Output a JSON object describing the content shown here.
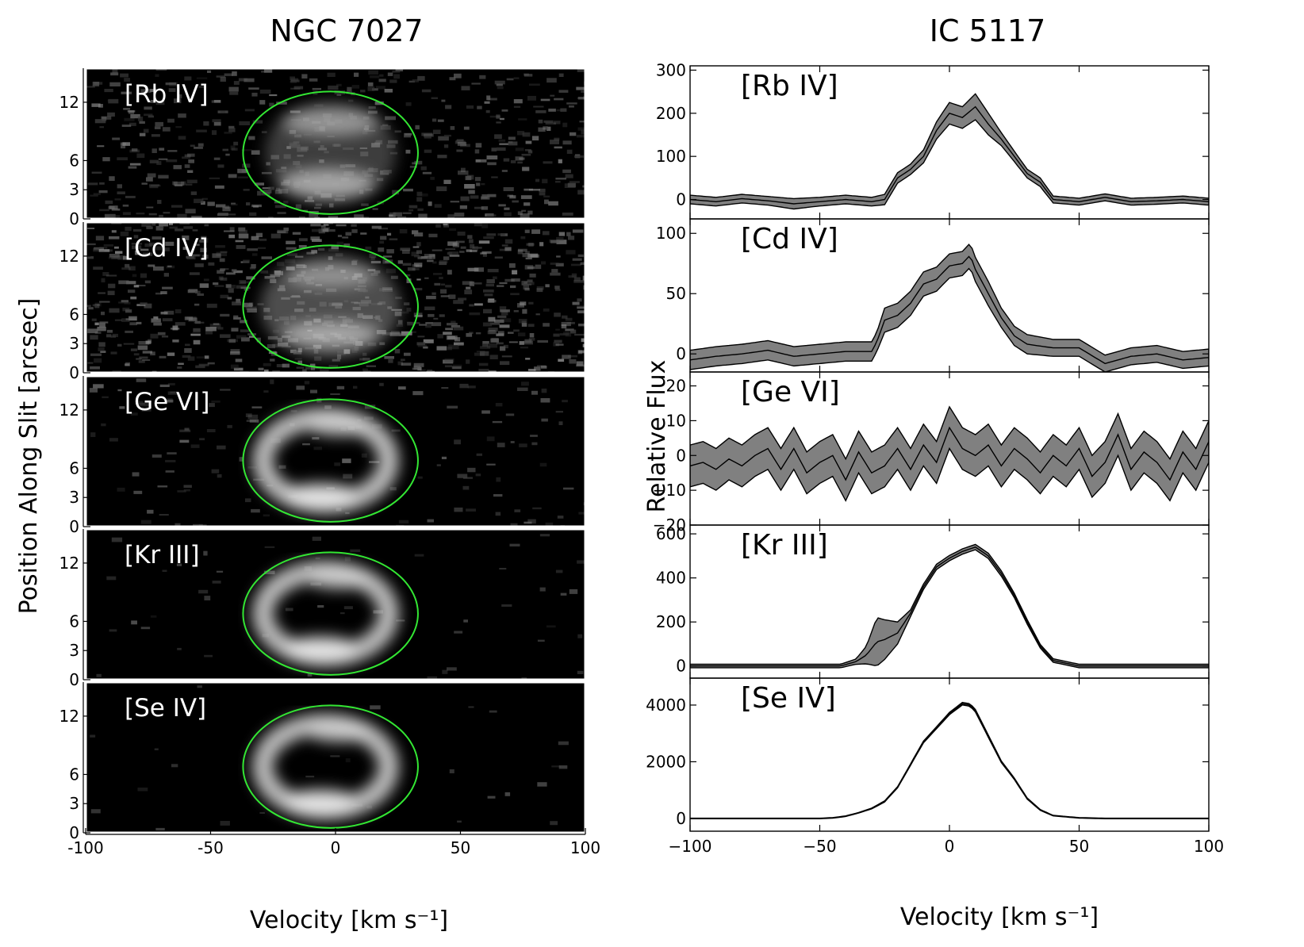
{
  "figure": {
    "left_title": "NGC 7027",
    "right_title": "IC 5117",
    "left_ylabel": "Position Along Slit [arcsec]",
    "right_ylabel": "Relative Flux",
    "left_xlabel": "Velocity [km s⁻¹]",
    "right_xlabel": "Velocity [km s⁻¹]",
    "colors": {
      "ellipse": "#33e633",
      "band_fill": "#808080",
      "line": "#000000",
      "image_bg": "#000000"
    }
  },
  "chart_data": [
    {
      "type": "heatmap",
      "title": "NGC 7027",
      "xlabel": "Velocity [km s⁻¹]",
      "ylabel": "Position Along Slit [arcsec]",
      "xlim": [
        -100,
        100
      ],
      "xticks": [
        -100,
        -50,
        0,
        50,
        100
      ],
      "xticklabels": [
        "-100",
        "-50",
        "0",
        "50",
        "100"
      ],
      "ylim": [
        0,
        15.5
      ],
      "yticks": [
        0,
        3,
        6,
        12
      ],
      "yticklabels": [
        "0",
        "3",
        "6",
        "12"
      ],
      "ellipse": {
        "center_velocity": -2,
        "center_position": 6.8,
        "velocity_halfwidth": 35,
        "position_halfwidth": 6.3
      },
      "panels": [
        {
          "ion": "[Rb IV]",
          "style": "noisy-top-bottom",
          "noise": 0.22
        },
        {
          "ion": "[Cd IV]",
          "style": "noisy-shell",
          "noise": 0.32
        },
        {
          "ion": "[Ge VI]",
          "style": "ring",
          "noise": 0.06
        },
        {
          "ion": "[Kr III]",
          "style": "ring",
          "noise": 0.02
        },
        {
          "ion": "[Se IV]",
          "style": "ring",
          "noise": 0.01
        }
      ]
    },
    {
      "type": "area",
      "title": "IC 5117",
      "xlabel": "Velocity [km s⁻¹]",
      "ylabel": "Relative Flux",
      "xlim": [
        -100,
        100
      ],
      "xticks": [
        -100,
        -50,
        0,
        50,
        100
      ],
      "xticklabels": [
        "−100",
        "−50",
        "0",
        "50",
        "100"
      ],
      "panels": [
        {
          "ion": "[Rb IV]",
          "ylim": [
            -45,
            310
          ],
          "yticks": [
            0,
            100,
            200,
            300
          ],
          "yticklabels": [
            "0",
            "100",
            "200",
            "300"
          ],
          "x": [
            -100,
            -90,
            -80,
            -70,
            -60,
            -50,
            -40,
            -30,
            -25,
            -20,
            -15,
            -10,
            -5,
            0,
            5,
            10,
            15,
            20,
            25,
            30,
            35,
            40,
            50,
            60,
            70,
            80,
            90,
            100
          ],
          "y": [
            0,
            -5,
            2,
            -3,
            -10,
            -5,
            0,
            -5,
            0,
            50,
            70,
            100,
            160,
            200,
            190,
            215,
            175,
            140,
            100,
            60,
            40,
            0,
            -5,
            5,
            -5,
            -3,
            0,
            -5
          ],
          "band": [
            10,
            10,
            10,
            10,
            12,
            10,
            10,
            10,
            12,
            12,
            12,
            15,
            20,
            25,
            25,
            30,
            25,
            15,
            12,
            10,
            10,
            8,
            8,
            8,
            8,
            8,
            8,
            8
          ]
        },
        {
          "ion": "[Cd IV]",
          "ylim": [
            -15,
            112
          ],
          "yticks": [
            0,
            50,
            100
          ],
          "yticklabels": [
            "0",
            "50",
            "100"
          ],
          "x": [
            -100,
            -90,
            -80,
            -70,
            -60,
            -50,
            -40,
            -30,
            -28,
            -25,
            -20,
            -15,
            -10,
            -5,
            0,
            5,
            8,
            10,
            15,
            20,
            25,
            30,
            40,
            50,
            60,
            70,
            80,
            90,
            100
          ],
          "y": [
            -5,
            -2,
            0,
            3,
            -2,
            0,
            2,
            2,
            10,
            28,
            32,
            42,
            58,
            62,
            73,
            75,
            82,
            70,
            50,
            30,
            15,
            8,
            5,
            5,
            -8,
            -2,
            0,
            -5,
            -3
          ],
          "band": [
            8,
            8,
            8,
            8,
            8,
            8,
            8,
            8,
            8,
            10,
            10,
            10,
            10,
            10,
            10,
            10,
            10,
            10,
            10,
            8,
            8,
            8,
            7,
            7,
            7,
            7,
            7,
            7,
            7
          ]
        },
        {
          "ion": "[Ge VI]",
          "ylim": [
            -20,
            24
          ],
          "yticks": [
            -20,
            -10,
            0,
            10,
            20
          ],
          "yticklabels": [
            "−20",
            "−10",
            "0",
            "10",
            "20"
          ],
          "x": [
            -100,
            -95,
            -90,
            -85,
            -80,
            -75,
            -70,
            -65,
            -60,
            -55,
            -50,
            -45,
            -40,
            -35,
            -30,
            -25,
            -20,
            -15,
            -10,
            -5,
            0,
            5,
            10,
            15,
            20,
            25,
            30,
            35,
            40,
            45,
            50,
            55,
            60,
            65,
            70,
            75,
            80,
            85,
            90,
            95,
            100
          ],
          "y": [
            -3,
            -2,
            -4,
            -1,
            -3,
            0,
            2,
            -4,
            2,
            -5,
            -2,
            0,
            -7,
            1,
            -5,
            -3,
            2,
            -4,
            3,
            -2,
            8,
            2,
            0,
            3,
            -3,
            2,
            -1,
            -5,
            0,
            -3,
            2,
            -6,
            -2,
            6,
            -4,
            1,
            -2,
            -7,
            1,
            -4,
            4
          ],
          "band": [
            6,
            6,
            6,
            6,
            6,
            6,
            6,
            6,
            6,
            6,
            6,
            6,
            6,
            6,
            6,
            6,
            6,
            6,
            6,
            6,
            6,
            6,
            6,
            6,
            6,
            6,
            6,
            6,
            6,
            6,
            6,
            6,
            6,
            6,
            6,
            6,
            6,
            6,
            6,
            6,
            6
          ]
        },
        {
          "ion": "[Kr III]",
          "ylim": [
            -55,
            640
          ],
          "yticks": [
            0,
            200,
            400,
            600
          ],
          "yticklabels": [
            "0",
            "200",
            "400",
            "600"
          ],
          "x": [
            -100,
            -90,
            -80,
            -70,
            -60,
            -50,
            -42,
            -36,
            -32,
            -28,
            -25,
            -20,
            -15,
            -10,
            -5,
            0,
            5,
            10,
            15,
            20,
            25,
            30,
            35,
            40,
            50,
            60,
            70,
            80,
            90,
            100
          ],
          "y": [
            0,
            0,
            0,
            0,
            0,
            0,
            0,
            20,
            50,
            110,
            120,
            150,
            240,
            360,
            450,
            490,
            520,
            540,
            500,
            420,
            320,
            200,
            90,
            25,
            0,
            0,
            0,
            0,
            0,
            0
          ],
          "band": [
            8,
            8,
            8,
            8,
            8,
            8,
            8,
            12,
            40,
            110,
            90,
            50,
            15,
            12,
            12,
            12,
            12,
            12,
            12,
            12,
            10,
            10,
            8,
            8,
            8,
            8,
            8,
            8,
            8,
            8
          ]
        },
        {
          "ion": "[Se IV]",
          "ylim": [
            -450,
            4950
          ],
          "yticks": [
            0,
            2000,
            4000
          ],
          "yticklabels": [
            "0",
            "2000",
            "4000"
          ],
          "x": [
            -100,
            -80,
            -60,
            -50,
            -45,
            -40,
            -35,
            -30,
            -25,
            -20,
            -15,
            -10,
            -5,
            0,
            5,
            8,
            10,
            15,
            20,
            25,
            30,
            35,
            40,
            50,
            60,
            80,
            100
          ],
          "y": [
            0,
            0,
            0,
            0,
            20,
            80,
            200,
            350,
            600,
            1100,
            1900,
            2700,
            3200,
            3700,
            4050,
            4000,
            3800,
            2900,
            2000,
            1400,
            700,
            300,
            100,
            20,
            0,
            0,
            0
          ],
          "band": [
            10,
            10,
            10,
            10,
            10,
            10,
            10,
            15,
            20,
            20,
            25,
            30,
            35,
            40,
            45,
            45,
            45,
            40,
            30,
            25,
            20,
            15,
            10,
            10,
            10,
            10,
            10
          ]
        }
      ]
    }
  ]
}
